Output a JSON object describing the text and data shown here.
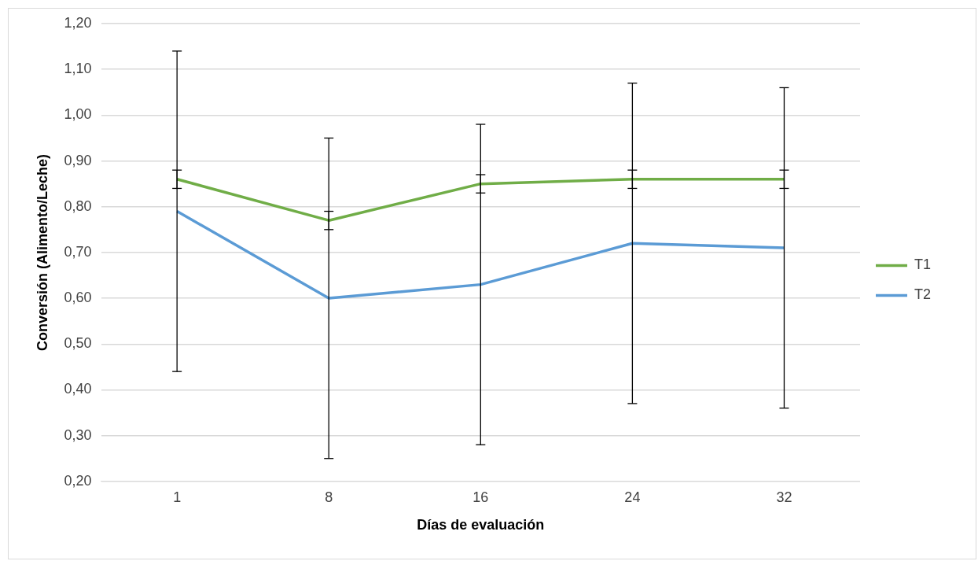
{
  "chart_data": {
    "type": "line",
    "xlabel": "Días de evaluación",
    "ylabel": "Conversión (Alimento/Leche)",
    "categories": [
      "1",
      "8",
      "16",
      "24",
      "32"
    ],
    "series": [
      {
        "name": "T1",
        "color": "#70ad47",
        "values": [
          0.86,
          0.77,
          0.85,
          0.86,
          0.86
        ],
        "errors": [
          0.02,
          0.02,
          0.02,
          0.02,
          0.02
        ]
      },
      {
        "name": "T2",
        "color": "#5b9bd5",
        "values": [
          0.79,
          0.6,
          0.63,
          0.72,
          0.71
        ],
        "errors": [
          0.35,
          0.35,
          0.35,
          0.35,
          0.35
        ]
      }
    ],
    "ylim": [
      0.2,
      1.2
    ],
    "yticks": [
      {
        "value": 0.2,
        "label": "0,20"
      },
      {
        "value": 0.3,
        "label": "0,30"
      },
      {
        "value": 0.4,
        "label": "0,40"
      },
      {
        "value": 0.5,
        "label": "0,50"
      },
      {
        "value": 0.6,
        "label": "0,60"
      },
      {
        "value": 0.7,
        "label": "0,70"
      },
      {
        "value": 0.8,
        "label": "0,80"
      },
      {
        "value": 0.9,
        "label": "0,90"
      },
      {
        "value": 1.0,
        "label": "1,00"
      },
      {
        "value": 1.1,
        "label": "1,10"
      },
      {
        "value": 1.2,
        "label": "1,20"
      }
    ],
    "grid": "y",
    "legend": "right",
    "marker": "none",
    "line_style": "solid"
  }
}
